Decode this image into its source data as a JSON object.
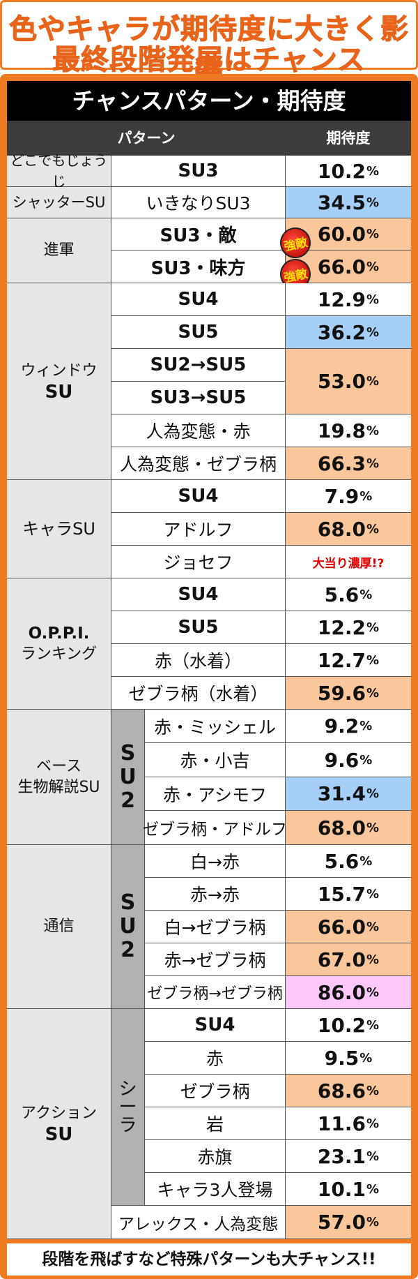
{
  "header": {
    "line1": "色やキャラが期待度に大きく影響",
    "line2": "最終段階発展はチャンス"
  },
  "table": {
    "title": "チャンスパターン・期待度",
    "col_pattern": "パターン",
    "col_value": "期待度",
    "percent": "%",
    "badge": "強敵",
    "groups": [
      {
        "name": "どこでもじょうじ",
        "rows": [
          {
            "pattern": "SU3",
            "value": "10.2"
          }
        ]
      },
      {
        "name": "シャッターSU",
        "rows": [
          {
            "pattern": "いきなりSU3",
            "value": "34.5"
          }
        ]
      },
      {
        "name": "進軍",
        "rows": [
          {
            "pattern": "SU3・敵",
            "value": "60.0"
          },
          {
            "pattern": "SU3・味方",
            "value": "66.0"
          }
        ]
      },
      {
        "name_l1": "ウィンドウ",
        "name_l2": "SU",
        "rows": [
          {
            "pattern": "SU4",
            "value": "12.9"
          },
          {
            "pattern": "SU5",
            "value": "36.2"
          },
          {
            "pattern": "SU2→SU5",
            "value": "53.0"
          },
          {
            "pattern": "SU3→SU5"
          },
          {
            "pattern": "人為変態・赤",
            "value": "19.8"
          },
          {
            "pattern": "人為変態・ゼブラ柄",
            "value": "66.3"
          }
        ]
      },
      {
        "name": "キャラSU",
        "rows": [
          {
            "pattern": "SU4",
            "value": "7.9"
          },
          {
            "pattern": "アドルフ",
            "value": "68.0"
          },
          {
            "pattern": "ジョセフ",
            "value": "大当り濃厚!?"
          }
        ]
      },
      {
        "name_l1": "O.P.P.I.",
        "name_l2": "ランキング",
        "rows": [
          {
            "pattern": "SU4",
            "value": "5.6"
          },
          {
            "pattern": "SU5",
            "value": "12.2"
          },
          {
            "pattern": "赤（水着）",
            "value": "12.7"
          },
          {
            "pattern": "ゼブラ柄（水着）",
            "value": "59.6"
          }
        ]
      },
      {
        "name_l1": "ベース",
        "name_l2": "生物解説SU",
        "sub": [
          "S",
          "U",
          "2"
        ],
        "rows": [
          {
            "pattern": "赤・ミッシェル",
            "value": "9.2"
          },
          {
            "pattern": "赤・小吉",
            "value": "9.6"
          },
          {
            "pattern": "赤・アシモフ",
            "value": "31.4"
          },
          {
            "pattern": "ゼブラ柄・アドルフ",
            "value": "68.0"
          }
        ]
      },
      {
        "name": "通信",
        "sub": [
          "S",
          "U",
          "2"
        ],
        "rows": [
          {
            "pattern": "白→赤",
            "value": "5.6"
          },
          {
            "pattern": "赤→赤",
            "value": "15.7"
          },
          {
            "pattern": "白→ゼブラ柄",
            "value": "66.0"
          },
          {
            "pattern": "赤→ゼブラ柄",
            "value": "67.0"
          },
          {
            "pattern": "ゼブラ柄→ゼブラ柄",
            "value": "86.0"
          }
        ]
      },
      {
        "name_l1": "アクション",
        "name_l2": "SU",
        "sub": [
          "シ",
          "ー",
          "ラ"
        ],
        "rows": [
          {
            "pattern": "SU4",
            "value": "10.2"
          },
          {
            "pattern": "赤",
            "value": "9.5"
          },
          {
            "pattern": "ゼブラ柄",
            "value": "68.6"
          },
          {
            "pattern": "岩",
            "value": "11.6"
          },
          {
            "pattern": "赤旗",
            "value": "23.1"
          },
          {
            "pattern": "キャラ3人登場",
            "value": "10.1"
          },
          {
            "pattern": "アレックス・人為変態",
            "value": "57.0"
          }
        ]
      }
    ]
  },
  "footer": "段階を飛ばすなど特殊パターンも大チャンス!!",
  "colors": {
    "orange_frame": "#ee7a22",
    "highlight_orange": "#fac79d",
    "highlight_blue": "#a5cff7",
    "highlight_pink": "#fcc8fa"
  }
}
